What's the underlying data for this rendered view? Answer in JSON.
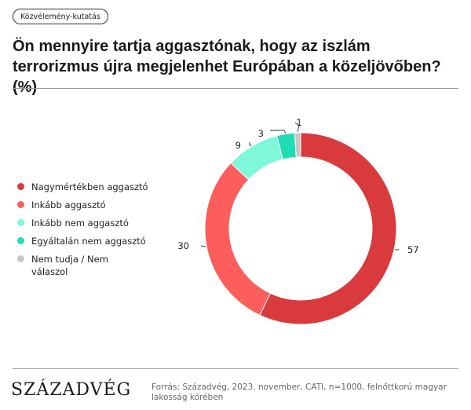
{
  "tag": "Közvélemény-kutatás",
  "title": "Ön mennyire tartja aggasztónak, hogy az iszlám terrorizmus újra megjelenhet Európában a közeljövőben? (%)",
  "colors": {
    "nagyon": "#d93a3d",
    "inkabb": "#fd5d5b",
    "inkabb_nem": "#7ff7da",
    "egyaltalan_nem": "#1fdcb3",
    "nem_tudja": "#c8c8c8"
  },
  "chart_data": {
    "type": "pie",
    "variant": "donut",
    "title": "",
    "categories": [
      "Nagymértékben aggasztó",
      "Inkább aggasztó",
      "Inkább nem aggasztó",
      "Egyáltalán nem aggasztó",
      "Nem tudja / Nem válaszol"
    ],
    "values": [
      57,
      30,
      9,
      3,
      1
    ],
    "colors": [
      "#d93a3d",
      "#fd5d5b",
      "#7ff7da",
      "#1fdcb3",
      "#c8c8c8"
    ],
    "legend_position": "left"
  },
  "legend": [
    {
      "label": "Nagymértékben aggasztó",
      "color": "#d93a3d"
    },
    {
      "label": "Inkább aggasztó",
      "color": "#fd5d5b"
    },
    {
      "label": "Inkább nem aggasztó",
      "color": "#7ff7da"
    },
    {
      "label": "Egyáltalán nem aggasztó",
      "color": "#1fdcb3"
    },
    {
      "label": "Nem tudja / Nem válaszol",
      "color": "#c8c8c8"
    }
  ],
  "footer": {
    "logo": "SZÁZADVÉG",
    "source": "Forrás: Századvég, 2023. november, CATI, n=1000, felnőttkorú magyar lakosság körében"
  }
}
